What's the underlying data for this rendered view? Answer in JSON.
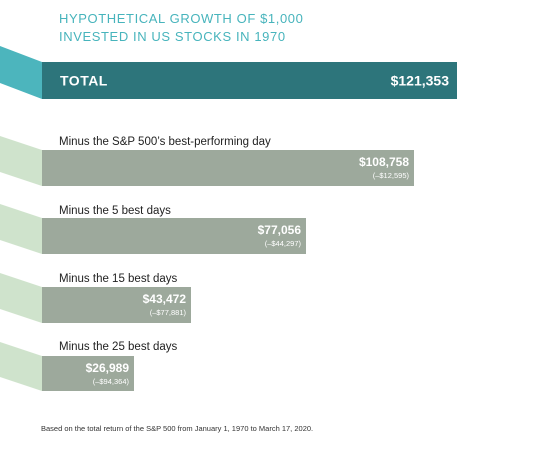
{
  "header": {
    "title_line1": "HYPOTHETICAL GROWTH OF $1,000",
    "title_line2": "INVESTED IN US STOCKS IN 1970"
  },
  "footnote": "Based on the total return of the S&P 500 from January 1, 1970 to March 17, 2020.",
  "colors": {
    "title": "#47b4bc",
    "total_bar": "#2d757b",
    "total_ribbon": "#4cb5bd",
    "minus_bar": "#9da99c",
    "minus_ribbon": "#cfe3cc"
  },
  "chart_data": {
    "type": "bar",
    "orientation": "horizontal",
    "xlim": [
      0,
      121353
    ],
    "bars": [
      {
        "label": "TOTAL",
        "value": 121353,
        "value_label": "$121,353",
        "diff_label": "",
        "kind": "total"
      },
      {
        "label": "Minus the S&P 500’s best-performing day",
        "value": 108758,
        "value_label": "$108,758",
        "diff_label": "(–$12,595)",
        "kind": "minus"
      },
      {
        "label": "Minus the 5 best days",
        "value": 77056,
        "value_label": "$77,056",
        "diff_label": "(–$44,297)",
        "kind": "minus"
      },
      {
        "label": "Minus the 15 best days",
        "value": 43472,
        "value_label": "$43,472",
        "diff_label": "(–$77,881)",
        "kind": "minus"
      },
      {
        "label": "Minus the 25 best days",
        "value": 26989,
        "value_label": "$26,989",
        "diff_label": "(–$94,364)",
        "kind": "minus"
      }
    ]
  }
}
